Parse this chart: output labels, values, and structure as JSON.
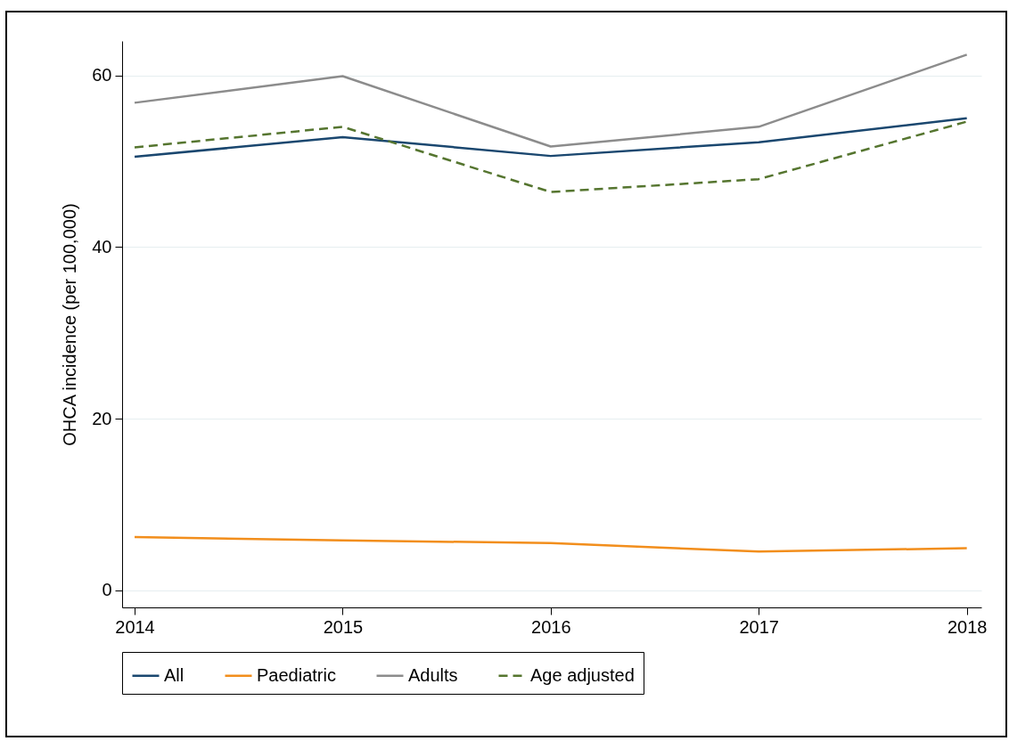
{
  "chart_data": {
    "type": "line",
    "ylabel": "OHCA incidence (per 100,000)",
    "x": [
      2014,
      2015,
      2016,
      2017,
      2018
    ],
    "xlim": [
      2013.94,
      2018.07
    ],
    "xticks": [
      2014,
      2015,
      2016,
      2017,
      2018
    ],
    "ylim": [
      -2,
      64
    ],
    "yticks": [
      0,
      20,
      40,
      60
    ],
    "grid": "y",
    "legend": "bottom",
    "series": [
      {
        "name": "All",
        "color": "#1a476f",
        "values": [
          50.5,
          52.8,
          50.6,
          52.2,
          55.0
        ]
      },
      {
        "name": "Paediatric",
        "color": "#f28e1c",
        "values": [
          6.2,
          5.8,
          5.5,
          4.5,
          4.9
        ]
      },
      {
        "name": "Adults",
        "color": "#8c8c8c",
        "values": [
          56.8,
          59.9,
          51.7,
          54.0,
          62.4
        ]
      },
      {
        "name": "Age adjusted",
        "color": "#55752f",
        "line_style": "dashed",
        "values": [
          51.6,
          54.0,
          46.4,
          47.9,
          54.6
        ]
      }
    ]
  }
}
